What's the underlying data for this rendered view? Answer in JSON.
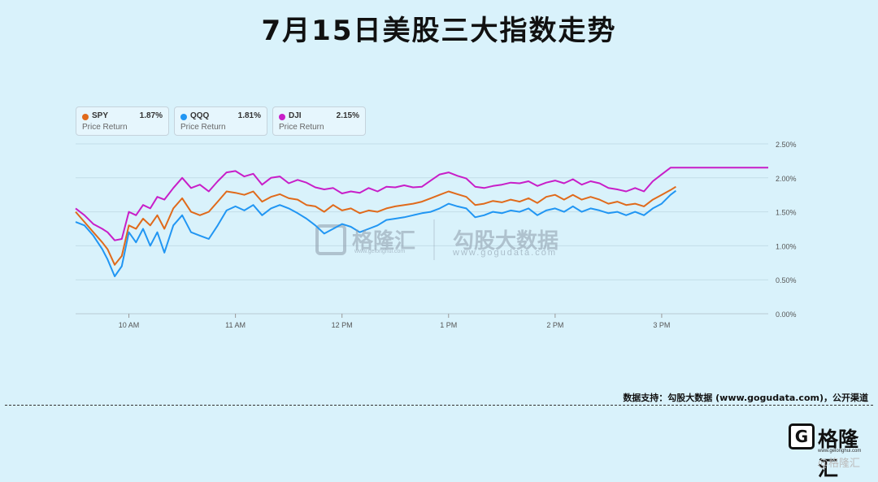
{
  "title": "7月15日美股三大指数走势",
  "legend": [
    {
      "name": "SPY",
      "value": "1.87%",
      "sub": "Price Return",
      "color": "#e06a1b"
    },
    {
      "name": "QQQ",
      "value": "1.81%",
      "sub": "Price Return",
      "color": "#2196f3"
    },
    {
      "name": "DJI",
      "value": "2.15%",
      "sub": "Price Return",
      "color": "#c81ec8"
    }
  ],
  "watermark": {
    "brand": "格隆汇",
    "brand_url": "www.gelonghui.com",
    "partner": "勾股大数据",
    "partner_url": "www.gogudata.com"
  },
  "footer": {
    "source": "数据支持：勾股大数据  (www.gogudata.com)，公开渠道",
    "brand": "格隆汇",
    "brand_url": "www.gelonghui.com",
    "logo_glyph": "G",
    "corner_mark": "@格隆汇"
  },
  "chart_data": {
    "type": "line",
    "xlabel": "",
    "ylabel": "",
    "x_ticks": [
      "10 AM",
      "11 AM",
      "12 PM",
      "1 PM",
      "2 PM",
      "3 PM"
    ],
    "y_ticks": [
      "0.00%",
      "0.50%",
      "1.00%",
      "1.50%",
      "2.00%",
      "2.50%"
    ],
    "ylim": [
      0,
      2.5
    ],
    "xlim": [
      "09:30",
      "16:00"
    ],
    "grid": true,
    "legend_position": "top-left",
    "series": [
      {
        "name": "DJI",
        "color": "#c81ec8",
        "points": [
          [
            "09:30",
            1.55
          ],
          [
            "09:35",
            1.45
          ],
          [
            "09:40",
            1.32
          ],
          [
            "09:45",
            1.25
          ],
          [
            "09:48",
            1.2
          ],
          [
            "09:52",
            1.08
          ],
          [
            "09:56",
            1.1
          ],
          [
            "10:00",
            1.5
          ],
          [
            "10:04",
            1.45
          ],
          [
            "10:08",
            1.6
          ],
          [
            "10:12",
            1.55
          ],
          [
            "10:16",
            1.72
          ],
          [
            "10:20",
            1.68
          ],
          [
            "10:25",
            1.85
          ],
          [
            "10:30",
            2.0
          ],
          [
            "10:35",
            1.85
          ],
          [
            "10:40",
            1.9
          ],
          [
            "10:45",
            1.8
          ],
          [
            "10:50",
            1.95
          ],
          [
            "10:55",
            2.08
          ],
          [
            "11:00",
            2.1
          ],
          [
            "11:05",
            2.02
          ],
          [
            "11:10",
            2.06
          ],
          [
            "11:15",
            1.9
          ],
          [
            "11:20",
            2.0
          ],
          [
            "11:25",
            2.02
          ],
          [
            "11:30",
            1.92
          ],
          [
            "11:35",
            1.97
          ],
          [
            "11:40",
            1.93
          ],
          [
            "11:45",
            1.86
          ],
          [
            "11:50",
            1.83
          ],
          [
            "11:55",
            1.85
          ],
          [
            "12:00",
            1.77
          ],
          [
            "12:05",
            1.8
          ],
          [
            "12:10",
            1.78
          ],
          [
            "12:15",
            1.85
          ],
          [
            "12:20",
            1.8
          ],
          [
            "12:25",
            1.87
          ],
          [
            "12:30",
            1.86
          ],
          [
            "12:35",
            1.89
          ],
          [
            "12:40",
            1.86
          ],
          [
            "12:45",
            1.87
          ],
          [
            "12:50",
            1.96
          ],
          [
            "12:55",
            2.05
          ],
          [
            "13:00",
            2.08
          ],
          [
            "13:05",
            2.03
          ],
          [
            "13:10",
            1.99
          ],
          [
            "13:15",
            1.87
          ],
          [
            "13:20",
            1.85
          ],
          [
            "13:25",
            1.88
          ],
          [
            "13:30",
            1.9
          ],
          [
            "13:35",
            1.93
          ],
          [
            "13:40",
            1.92
          ],
          [
            "13:45",
            1.95
          ],
          [
            "13:50",
            1.88
          ],
          [
            "13:55",
            1.93
          ],
          [
            "14:00",
            1.96
          ],
          [
            "14:05",
            1.92
          ],
          [
            "14:10",
            1.98
          ],
          [
            "14:15",
            1.9
          ],
          [
            "14:20",
            1.95
          ],
          [
            "14:25",
            1.92
          ],
          [
            "14:30",
            1.85
          ],
          [
            "14:35",
            1.83
          ],
          [
            "14:40",
            1.8
          ],
          [
            "14:45",
            1.85
          ],
          [
            "14:50",
            1.8
          ],
          [
            "14:55",
            1.95
          ],
          [
            "15:00",
            2.05
          ],
          [
            "15:05",
            2.15
          ],
          [
            "15:10",
            2.15
          ],
          [
            "16:00",
            2.15
          ]
        ]
      },
      {
        "name": "SPY",
        "color": "#e06a1b",
        "points": [
          [
            "09:30",
            1.5
          ],
          [
            "09:35",
            1.35
          ],
          [
            "09:40",
            1.2
          ],
          [
            "09:45",
            1.05
          ],
          [
            "09:48",
            0.95
          ],
          [
            "09:52",
            0.72
          ],
          [
            "09:56",
            0.85
          ],
          [
            "10:00",
            1.3
          ],
          [
            "10:04",
            1.25
          ],
          [
            "10:08",
            1.4
          ],
          [
            "10:12",
            1.3
          ],
          [
            "10:16",
            1.45
          ],
          [
            "10:20",
            1.25
          ],
          [
            "10:25",
            1.55
          ],
          [
            "10:30",
            1.7
          ],
          [
            "10:35",
            1.5
          ],
          [
            "10:40",
            1.45
          ],
          [
            "10:45",
            1.5
          ],
          [
            "10:50",
            1.65
          ],
          [
            "10:55",
            1.8
          ],
          [
            "11:00",
            1.78
          ],
          [
            "11:05",
            1.75
          ],
          [
            "11:10",
            1.8
          ],
          [
            "11:15",
            1.65
          ],
          [
            "11:20",
            1.72
          ],
          [
            "11:25",
            1.76
          ],
          [
            "11:30",
            1.7
          ],
          [
            "11:35",
            1.68
          ],
          [
            "11:40",
            1.6
          ],
          [
            "11:45",
            1.58
          ],
          [
            "11:50",
            1.5
          ],
          [
            "11:55",
            1.6
          ],
          [
            "12:00",
            1.52
          ],
          [
            "12:05",
            1.55
          ],
          [
            "12:10",
            1.48
          ],
          [
            "12:15",
            1.52
          ],
          [
            "12:20",
            1.5
          ],
          [
            "12:25",
            1.55
          ],
          [
            "12:30",
            1.58
          ],
          [
            "12:35",
            1.6
          ],
          [
            "12:40",
            1.62
          ],
          [
            "12:45",
            1.65
          ],
          [
            "12:50",
            1.7
          ],
          [
            "12:55",
            1.75
          ],
          [
            "13:00",
            1.8
          ],
          [
            "13:05",
            1.76
          ],
          [
            "13:10",
            1.72
          ],
          [
            "13:15",
            1.6
          ],
          [
            "13:20",
            1.62
          ],
          [
            "13:25",
            1.66
          ],
          [
            "13:30",
            1.64
          ],
          [
            "13:35",
            1.68
          ],
          [
            "13:40",
            1.65
          ],
          [
            "13:45",
            1.7
          ],
          [
            "13:50",
            1.63
          ],
          [
            "13:55",
            1.72
          ],
          [
            "14:00",
            1.75
          ],
          [
            "14:05",
            1.68
          ],
          [
            "14:10",
            1.75
          ],
          [
            "14:15",
            1.68
          ],
          [
            "14:20",
            1.72
          ],
          [
            "14:25",
            1.68
          ],
          [
            "14:30",
            1.62
          ],
          [
            "14:35",
            1.65
          ],
          [
            "14:40",
            1.6
          ],
          [
            "14:45",
            1.62
          ],
          [
            "14:50",
            1.58
          ],
          [
            "14:55",
            1.68
          ],
          [
            "15:00",
            1.75
          ],
          [
            "15:05",
            1.82
          ],
          [
            "15:08",
            1.87
          ]
        ]
      },
      {
        "name": "QQQ",
        "color": "#2196f3",
        "points": [
          [
            "09:30",
            1.35
          ],
          [
            "09:35",
            1.3
          ],
          [
            "09:40",
            1.15
          ],
          [
            "09:45",
            0.95
          ],
          [
            "09:48",
            0.8
          ],
          [
            "09:52",
            0.55
          ],
          [
            "09:56",
            0.7
          ],
          [
            "10:00",
            1.2
          ],
          [
            "10:04",
            1.05
          ],
          [
            "10:08",
            1.25
          ],
          [
            "10:12",
            1.0
          ],
          [
            "10:16",
            1.2
          ],
          [
            "10:20",
            0.9
          ],
          [
            "10:25",
            1.3
          ],
          [
            "10:30",
            1.45
          ],
          [
            "10:35",
            1.2
          ],
          [
            "10:40",
            1.15
          ],
          [
            "10:45",
            1.1
          ],
          [
            "10:50",
            1.3
          ],
          [
            "10:55",
            1.52
          ],
          [
            "11:00",
            1.58
          ],
          [
            "11:05",
            1.52
          ],
          [
            "11:10",
            1.6
          ],
          [
            "11:15",
            1.45
          ],
          [
            "11:20",
            1.55
          ],
          [
            "11:25",
            1.6
          ],
          [
            "11:30",
            1.55
          ],
          [
            "11:35",
            1.48
          ],
          [
            "11:40",
            1.4
          ],
          [
            "11:45",
            1.3
          ],
          [
            "11:50",
            1.18
          ],
          [
            "11:55",
            1.25
          ],
          [
            "12:00",
            1.32
          ],
          [
            "12:05",
            1.28
          ],
          [
            "12:10",
            1.2
          ],
          [
            "12:15",
            1.25
          ],
          [
            "12:20",
            1.3
          ],
          [
            "12:25",
            1.38
          ],
          [
            "12:30",
            1.4
          ],
          [
            "12:35",
            1.42
          ],
          [
            "12:40",
            1.45
          ],
          [
            "12:45",
            1.48
          ],
          [
            "12:50",
            1.5
          ],
          [
            "12:55",
            1.55
          ],
          [
            "13:00",
            1.62
          ],
          [
            "13:05",
            1.58
          ],
          [
            "13:10",
            1.55
          ],
          [
            "13:15",
            1.42
          ],
          [
            "13:20",
            1.45
          ],
          [
            "13:25",
            1.5
          ],
          [
            "13:30",
            1.48
          ],
          [
            "13:35",
            1.52
          ],
          [
            "13:40",
            1.5
          ],
          [
            "13:45",
            1.55
          ],
          [
            "13:50",
            1.45
          ],
          [
            "13:55",
            1.52
          ],
          [
            "14:00",
            1.55
          ],
          [
            "14:05",
            1.5
          ],
          [
            "14:10",
            1.58
          ],
          [
            "14:15",
            1.5
          ],
          [
            "14:20",
            1.55
          ],
          [
            "14:25",
            1.52
          ],
          [
            "14:30",
            1.48
          ],
          [
            "14:35",
            1.5
          ],
          [
            "14:40",
            1.45
          ],
          [
            "14:45",
            1.5
          ],
          [
            "14:50",
            1.45
          ],
          [
            "14:55",
            1.55
          ],
          [
            "15:00",
            1.62
          ],
          [
            "15:05",
            1.75
          ],
          [
            "15:08",
            1.81
          ]
        ]
      }
    ]
  }
}
